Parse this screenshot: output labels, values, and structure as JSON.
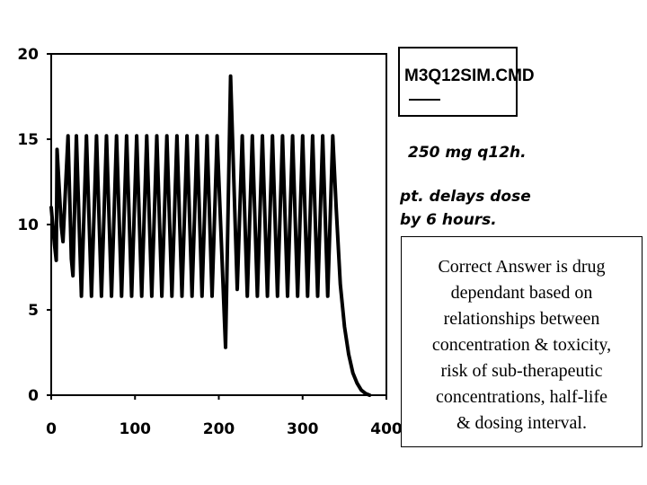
{
  "chart_data": {
    "type": "line",
    "title": "",
    "xlabel": "",
    "ylabel": "",
    "xlim": [
      0,
      400
    ],
    "ylim": [
      0,
      20
    ],
    "x_ticks": [
      "0",
      "100",
      "200",
      "300",
      "400"
    ],
    "y_ticks": [
      "0",
      "5",
      "10",
      "15",
      "20"
    ],
    "grid": false,
    "legend": "none",
    "dosing_interval_h": 12,
    "delayed_dose_h": 6,
    "peak_typical": 15.2,
    "trough_typical": 5.8,
    "series": [
      {
        "color": "#000000",
        "points": [
          [
            0,
            11.0
          ],
          [
            4,
            8.8
          ],
          [
            6,
            7.9
          ],
          [
            7,
            14.4
          ],
          [
            12,
            9.9
          ],
          [
            14,
            9.0
          ],
          [
            20,
            15.2
          ],
          [
            24,
            8.0
          ],
          [
            26,
            7.0
          ],
          [
            30,
            15.2
          ],
          [
            36,
            5.8
          ],
          [
            42,
            15.2
          ],
          [
            48,
            5.8
          ],
          [
            54,
            15.2
          ],
          [
            60,
            5.8
          ],
          [
            66,
            15.2
          ],
          [
            72,
            5.8
          ],
          [
            78,
            15.2
          ],
          [
            84,
            5.8
          ],
          [
            90,
            15.2
          ],
          [
            96,
            5.8
          ],
          [
            102,
            15.2
          ],
          [
            108,
            5.8
          ],
          [
            114,
            15.2
          ],
          [
            120,
            5.8
          ],
          [
            126,
            15.2
          ],
          [
            132,
            5.8
          ],
          [
            138,
            15.2
          ],
          [
            144,
            5.8
          ],
          [
            150,
            15.2
          ],
          [
            156,
            5.8
          ],
          [
            162,
            15.2
          ],
          [
            168,
            5.8
          ],
          [
            174,
            15.2
          ],
          [
            180,
            5.8
          ],
          [
            186,
            15.2
          ],
          [
            192,
            5.8
          ],
          [
            198,
            15.2
          ],
          [
            208,
            2.8
          ],
          [
            214,
            18.7
          ],
          [
            222,
            6.2
          ],
          [
            228,
            15.2
          ],
          [
            234,
            5.8
          ],
          [
            240,
            15.2
          ],
          [
            246,
            5.8
          ],
          [
            252,
            15.2
          ],
          [
            258,
            5.8
          ],
          [
            264,
            15.2
          ],
          [
            270,
            5.8
          ],
          [
            276,
            15.2
          ],
          [
            282,
            5.8
          ],
          [
            288,
            15.2
          ],
          [
            294,
            5.8
          ],
          [
            300,
            15.2
          ],
          [
            306,
            5.8
          ],
          [
            312,
            15.2
          ],
          [
            318,
            5.8
          ],
          [
            324,
            15.2
          ],
          [
            330,
            5.8
          ],
          [
            336,
            15.2
          ],
          [
            340,
            11.0
          ],
          [
            345,
            6.5
          ],
          [
            350,
            4.0
          ],
          [
            355,
            2.4
          ],
          [
            360,
            1.3
          ],
          [
            365,
            0.7
          ],
          [
            370,
            0.3
          ],
          [
            375,
            0.1
          ],
          [
            380,
            0.0
          ]
        ]
      }
    ]
  },
  "file_label": "M3Q12SIM.CMD",
  "annotations": {
    "dose": "250 mg q12h.",
    "delay_line1": "pt. delays dose",
    "delay_line2": "by 6 hours."
  },
  "answer_box": {
    "lines": [
      "Correct Answer is drug",
      "dependant based on",
      "relationships between",
      "concentration & toxicity,",
      "risk of sub-therapeutic",
      "concentrations, half-life",
      "& dosing interval."
    ]
  }
}
